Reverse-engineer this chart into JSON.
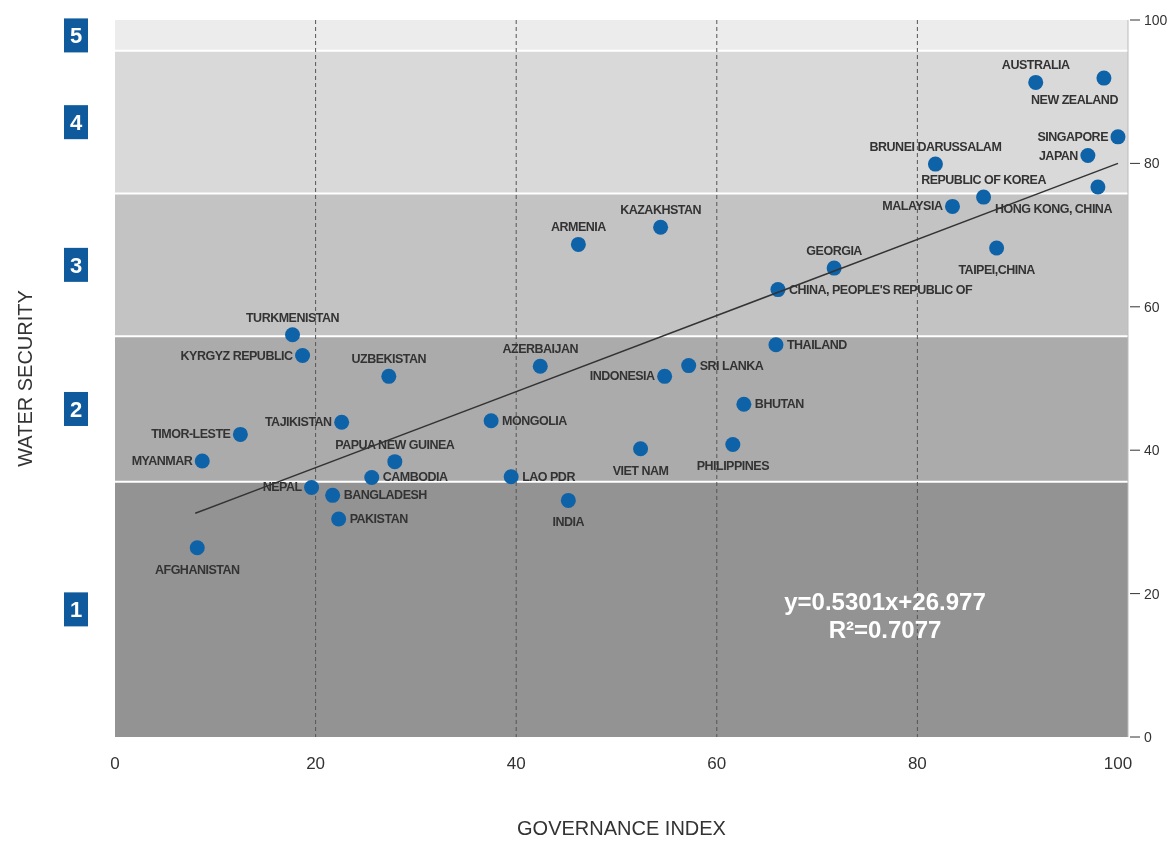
{
  "chart_data": {
    "type": "scatter",
    "xlabel": "GOVERNANCE INDEX",
    "ylabel": "WATER SECURITY",
    "xlim": [
      0,
      101
    ],
    "ylim": [
      0,
      100
    ],
    "xticks": [
      0,
      20,
      40,
      60,
      80,
      100
    ],
    "yticks": [
      0,
      20,
      40,
      60,
      80,
      100
    ],
    "grid": "x",
    "bands": [
      {
        "axis": "y",
        "from": 0,
        "to": 35.6,
        "label": "1",
        "color": "#939393"
      },
      {
        "axis": "y",
        "from": 35.6,
        "to": 55.9,
        "label": "2",
        "color": "#ababab"
      },
      {
        "axis": "y",
        "from": 55.9,
        "to": 75.8,
        "label": "3",
        "color": "#c3c3c3"
      },
      {
        "axis": "y",
        "from": 75.8,
        "to": 95.7,
        "label": "4",
        "color": "#d9d9d9"
      },
      {
        "axis": "y",
        "from": 95.7,
        "to": 100,
        "label": "5",
        "color": "#ececec"
      }
    ],
    "series": [
      {
        "marker": "circle",
        "color": "#0e62a8",
        "x": [
          8.2,
          8.7,
          12.5,
          17.7,
          18.7,
          19.6,
          21.7,
          22.3,
          22.6,
          27.3,
          25.6,
          27.9,
          37.5,
          39.5,
          45.2,
          42.4,
          46.2,
          54.4,
          54.8,
          57.2,
          52.4,
          61.6,
          62.7,
          65.9,
          66.1,
          71.7,
          83.5,
          86.6,
          81.8,
          87.9,
          98.0,
          97.0,
          100.0,
          91.8,
          98.6
        ],
        "values": [
          26.4,
          38.5,
          42.2,
          56.1,
          53.2,
          34.8,
          33.7,
          30.4,
          43.9,
          50.3,
          36.2,
          38.4,
          44.1,
          36.3,
          33.0,
          51.7,
          68.7,
          71.1,
          50.3,
          51.8,
          40.2,
          40.8,
          46.4,
          54.7,
          62.4,
          65.4,
          74.0,
          75.3,
          79.9,
          68.2,
          76.7,
          81.1,
          83.7,
          91.3,
          91.9
        ]
      },
      {
        "type": "line",
        "color": "#333333",
        "x": [
          8,
          100
        ],
        "values": [
          31.2,
          80.0
        ]
      }
    ],
    "annotations": [
      {
        "text": "AFGHANISTAN",
        "x": 8.2,
        "y": 26.4
      },
      {
        "text": "MYANMAR",
        "x": 8.7,
        "y": 38.5
      },
      {
        "text": "TIMOR-LESTE",
        "x": 12.5,
        "y": 42.2
      },
      {
        "text": "TURKMENISTAN",
        "x": 17.7,
        "y": 56.1
      },
      {
        "text": "KYRGYZ REPUBLIC",
        "x": 18.7,
        "y": 53.2
      },
      {
        "text": "NEPAL",
        "x": 19.6,
        "y": 34.8
      },
      {
        "text": "BANGLADESH",
        "x": 21.7,
        "y": 33.7
      },
      {
        "text": "PAKISTAN",
        "x": 22.3,
        "y": 30.4
      },
      {
        "text": "TAJIKISTAN",
        "x": 22.6,
        "y": 43.9
      },
      {
        "text": "UZBEKISTAN",
        "x": 27.3,
        "y": 50.3
      },
      {
        "text": "CAMBODIA",
        "x": 25.6,
        "y": 36.2
      },
      {
        "text": "PAPUA NEW GUINEA",
        "x": 27.9,
        "y": 38.4
      },
      {
        "text": "MONGOLIA",
        "x": 37.5,
        "y": 44.1
      },
      {
        "text": "LAO PDR",
        "x": 39.5,
        "y": 36.3
      },
      {
        "text": "INDIA",
        "x": 45.2,
        "y": 33.0
      },
      {
        "text": "AZERBAIJAN",
        "x": 42.4,
        "y": 51.7
      },
      {
        "text": "ARMENIA",
        "x": 46.2,
        "y": 68.7
      },
      {
        "text": "KAZAKHSTAN",
        "x": 54.4,
        "y": 71.1
      },
      {
        "text": "INDONESIA",
        "x": 54.8,
        "y": 50.3
      },
      {
        "text": "SRI LANKA",
        "x": 57.2,
        "y": 51.8
      },
      {
        "text": "VIET NAM",
        "x": 52.4,
        "y": 40.2
      },
      {
        "text": "PHILIPPINES",
        "x": 61.6,
        "y": 40.8
      },
      {
        "text": "BHUTAN",
        "x": 62.7,
        "y": 46.4
      },
      {
        "text": "THAILAND",
        "x": 65.9,
        "y": 54.7
      },
      {
        "text": "CHINA, PEOPLE'S REPUBLIC OF",
        "x": 66.1,
        "y": 62.4
      },
      {
        "text": "GEORGIA",
        "x": 71.7,
        "y": 65.4
      },
      {
        "text": "MALAYSIA",
        "x": 83.5,
        "y": 74.0
      },
      {
        "text": "REPUBLIC OF KOREA",
        "x": 86.6,
        "y": 75.3
      },
      {
        "text": "BRUNEI DARUSSALAM",
        "x": 81.8,
        "y": 79.9
      },
      {
        "text": "TAIPEI,CHINA",
        "x": 87.9,
        "y": 68.2
      },
      {
        "text": "HONG KONG, CHINA",
        "x": 98.0,
        "y": 76.7
      },
      {
        "text": "JAPAN",
        "x": 97.0,
        "y": 81.1
      },
      {
        "text": "SINGAPORE",
        "x": 100.0,
        "y": 83.7
      },
      {
        "text": "AUSTRALIA",
        "x": 91.8,
        "y": 91.3
      },
      {
        "text": "NEW ZEALAND",
        "x": 98.6,
        "y": 91.9
      },
      "y=0.5301x+26.977",
      "R²=0.7077"
    ]
  }
}
